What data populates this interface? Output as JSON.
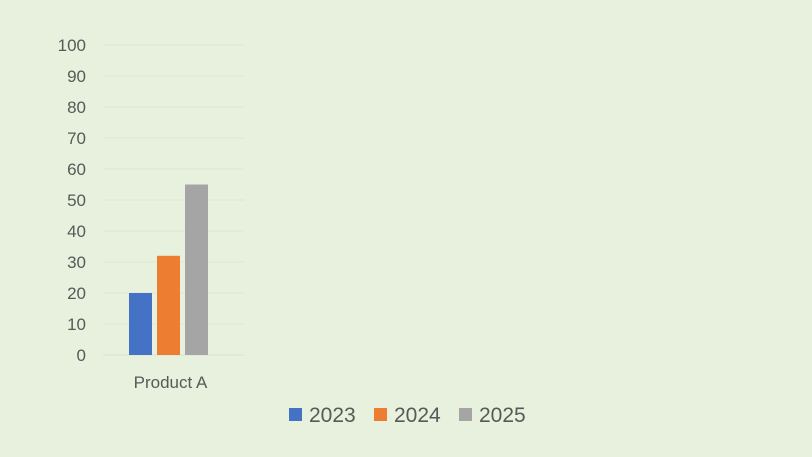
{
  "chart_data": {
    "type": "bar",
    "title": "",
    "xlabel": "",
    "ylabel": "",
    "categories": [
      "Product A"
    ],
    "series": [
      {
        "name": "2023",
        "values": [
          20
        ],
        "color": "#4472c4"
      },
      {
        "name": "2024",
        "values": [
          32
        ],
        "color": "#ed7d31"
      },
      {
        "name": "2025",
        "values": [
          55
        ],
        "color": "#a5a5a5"
      }
    ],
    "ylim": [
      0,
      100
    ],
    "yticks": [
      0,
      10,
      20,
      30,
      40,
      50,
      60,
      70,
      80,
      90,
      100
    ],
    "grid": true,
    "legend": "bottom"
  }
}
